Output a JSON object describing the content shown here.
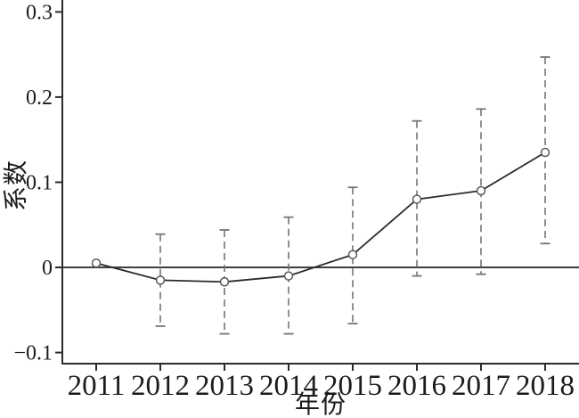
{
  "figure": {
    "ylabel": "系数",
    "xlabel": "年份",
    "background": "#ffffff"
  },
  "chart_data": {
    "type": "line",
    "title": "",
    "xlabel": "年份",
    "ylabel": "系数",
    "x": [
      2011,
      2012,
      2013,
      2014,
      2015,
      2016,
      2017,
      2018
    ],
    "xtick_labels": [
      "2011",
      "2012",
      "2013",
      "2014",
      "2015",
      "2016",
      "2017",
      "2018"
    ],
    "series": [
      {
        "name": "系数",
        "values": [
          0.005,
          -0.015,
          -0.017,
          -0.01,
          0.015,
          0.08,
          0.09,
          0.135
        ]
      }
    ],
    "ci_high": [
      null,
      0.039,
      0.044,
      0.059,
      0.094,
      0.172,
      0.186,
      0.247
    ],
    "ci_low": [
      null,
      -0.069,
      -0.078,
      -0.078,
      -0.066,
      -0.01,
      -0.008,
      0.028
    ],
    "yticks": [
      -0.1,
      0,
      0.1,
      0.2,
      0.3
    ],
    "ytick_labels": [
      "−0.1",
      "0",
      "0.1",
      "0.2",
      "0.3"
    ],
    "ylim": [
      -0.113,
      0.314
    ],
    "zero_line": true,
    "grid": false,
    "legend_position": "none",
    "marker": "open-circle",
    "colors": {
      "line": "#2e2a2b",
      "marker_stroke": "#585858",
      "marker_fill": "#ffffff",
      "ci": "#757575",
      "zero_line": "#3f3f3f",
      "spine": "#2b2b2b",
      "text": "#1c1c1c"
    }
  }
}
